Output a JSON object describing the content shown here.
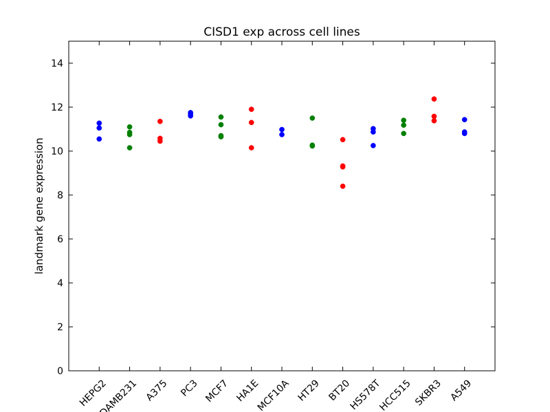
{
  "chart_data": {
    "type": "scatter",
    "title": "CISD1 exp across cell lines",
    "xlabel": "",
    "ylabel": "landmark gene expression",
    "ylim": [
      0,
      15
    ],
    "xlim": [
      0,
      14
    ],
    "yticks": [
      0,
      2,
      4,
      6,
      8,
      10,
      12,
      14
    ],
    "grid": false,
    "categories": [
      "HEPG2",
      "MDAMB231",
      "A375",
      "PC3",
      "MCF7",
      "HA1E",
      "MCF10A",
      "HT29",
      "BT20",
      "HS578T",
      "HCC515",
      "SKBR3",
      "A549"
    ],
    "colors": {
      "blue": "#0000ff",
      "green": "#008000",
      "red": "#ff0000"
    },
    "series": [
      {
        "category": "HEPG2",
        "color": "blue",
        "values": [
          11.27,
          11.05,
          10.55
        ]
      },
      {
        "category": "MDAMB231",
        "color": "green",
        "values": [
          11.1,
          10.85,
          10.75,
          10.15
        ]
      },
      {
        "category": "A375",
        "color": "red",
        "values": [
          11.35,
          10.58,
          10.45
        ]
      },
      {
        "category": "PC3",
        "color": "blue",
        "values": [
          11.75,
          11.68,
          11.6
        ]
      },
      {
        "category": "MCF7",
        "color": "green",
        "values": [
          11.55,
          11.2,
          10.7,
          10.65
        ]
      },
      {
        "category": "HA1E",
        "color": "red",
        "values": [
          11.9,
          11.3,
          10.15
        ]
      },
      {
        "category": "MCF10A",
        "color": "blue",
        "values": [
          10.98,
          10.75
        ]
      },
      {
        "category": "HT29",
        "color": "green",
        "values": [
          11.5,
          10.27,
          10.23
        ]
      },
      {
        "category": "BT20",
        "color": "red",
        "values": [
          10.52,
          9.32,
          9.28,
          8.4
        ]
      },
      {
        "category": "HS578T",
        "color": "blue",
        "values": [
          11.02,
          10.87,
          10.25
        ]
      },
      {
        "category": "HCC515",
        "color": "green",
        "values": [
          11.4,
          11.18,
          10.8
        ]
      },
      {
        "category": "SKBR3",
        "color": "red",
        "values": [
          12.37,
          11.58,
          11.38
        ]
      },
      {
        "category": "A549",
        "color": "blue",
        "values": [
          11.43,
          10.87,
          10.8
        ]
      }
    ]
  }
}
